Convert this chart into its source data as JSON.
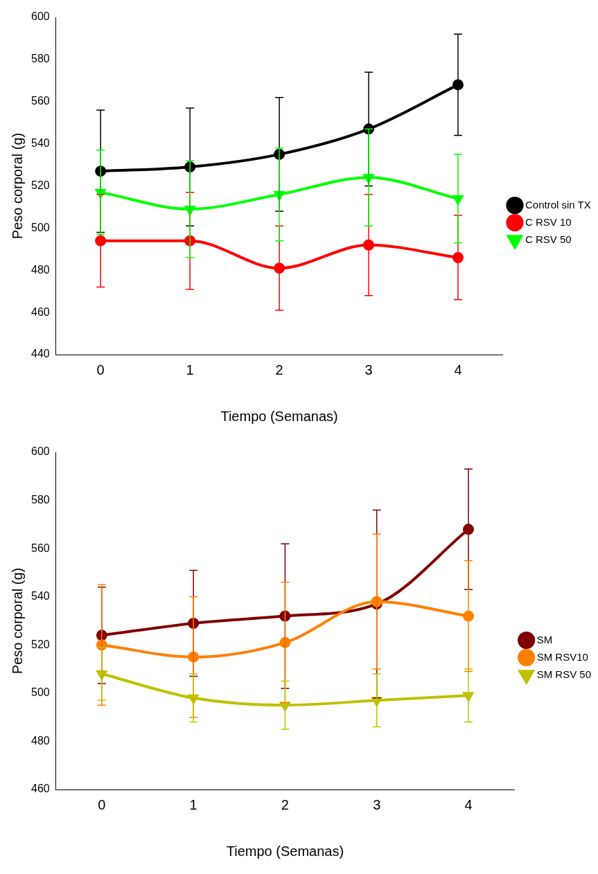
{
  "chart_data": [
    {
      "type": "line",
      "xlabel": "Tiempo (Semanas)",
      "ylabel": "Peso corporal (g)",
      "categories": [
        "0",
        "1",
        "2",
        "3",
        "4"
      ],
      "ylim": [
        440,
        600
      ],
      "yticks": [
        440,
        460,
        480,
        500,
        520,
        540,
        560,
        580,
        600
      ],
      "grid": false,
      "legend": "right",
      "line_style": "solid",
      "series": [
        {
          "name": "Control sin TX",
          "color": "#000000",
          "marker": "circle",
          "values": [
            527,
            529,
            535,
            547,
            568
          ],
          "errors": [
            29,
            28,
            27,
            27,
            24
          ]
        },
        {
          "name": "C RSV 10",
          "color": "#ff0000",
          "marker": "circle",
          "values": [
            494,
            494,
            481,
            492,
            486
          ],
          "errors": [
            22,
            23,
            20,
            24,
            20
          ]
        },
        {
          "name": "C RSV 50",
          "color": "#00ff00",
          "marker": "triangle",
          "values": [
            517,
            509,
            516,
            524,
            514
          ],
          "errors": [
            20,
            23,
            22,
            23,
            21
          ]
        }
      ]
    },
    {
      "type": "line",
      "xlabel": "Tiempo (Semanas)",
      "ylabel": "Peso corporal (g)",
      "categories": [
        "0",
        "1",
        "2",
        "3",
        "4"
      ],
      "ylim": [
        460,
        600
      ],
      "yticks": [
        460,
        480,
        500,
        520,
        540,
        560,
        580,
        600
      ],
      "grid": false,
      "legend": "right",
      "line_style": "solid",
      "series": [
        {
          "name": "SM",
          "color": "#800000",
          "marker": "circle",
          "values": [
            524,
            529,
            532,
            537,
            568
          ],
          "errors": [
            20,
            22,
            30,
            39,
            25
          ]
        },
        {
          "name": "SM RSV10",
          "color": "#ff8000",
          "marker": "circle",
          "values": [
            520,
            515,
            521,
            538,
            532
          ],
          "errors": [
            25,
            25,
            25,
            28,
            23
          ]
        },
        {
          "name": "SM RSV 50",
          "color": "#c0c000",
          "marker": "triangle",
          "values": [
            508,
            498,
            495,
            497,
            499
          ],
          "errors": [
            11,
            10,
            10,
            11,
            11
          ]
        }
      ]
    }
  ]
}
